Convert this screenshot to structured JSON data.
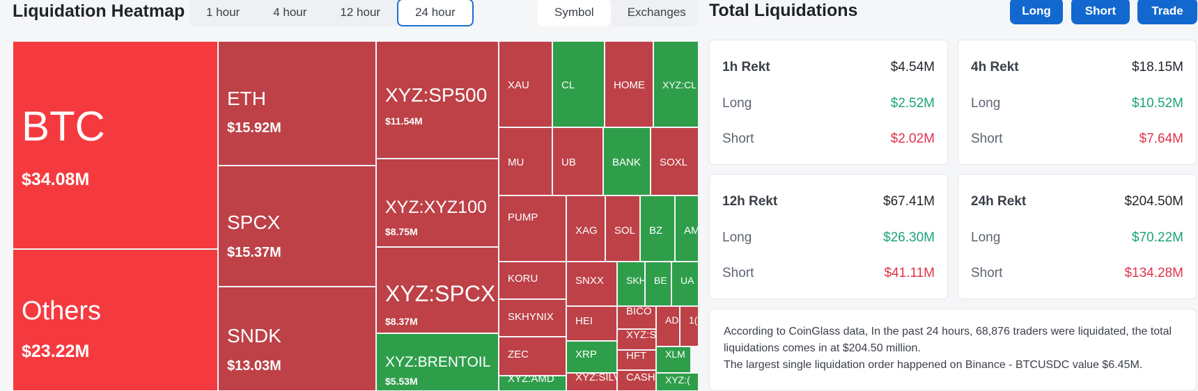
{
  "header": {
    "title": "Liquidation Heatmap",
    "time_tabs": [
      "1 hour",
      "4 hour",
      "12 hour",
      "24 hour"
    ],
    "active_time_tab": "24 hour",
    "group_tabs": [
      "Symbol",
      "Exchanges"
    ]
  },
  "heatmap": {
    "colors": {
      "red_bright": "#f53a3f",
      "red": "#bd4147",
      "green": "#2e9e4a"
    },
    "tiles": [
      {
        "symbol": "BTC",
        "value": "$34.08M"
      },
      {
        "symbol": "Others",
        "value": "$23.22M"
      },
      {
        "symbol": "ETH",
        "value": "$15.92M"
      },
      {
        "symbol": "SPCX",
        "value": "$15.37M"
      },
      {
        "symbol": "SNDK",
        "value": "$13.03M"
      },
      {
        "symbol": "XYZ:SP500",
        "value": "$11.54M"
      },
      {
        "symbol": "XYZ:XYZ100",
        "value": "$8.75M"
      },
      {
        "symbol": "XYZ:SPCX",
        "value": "$8.37M"
      },
      {
        "symbol": "XYZ:BRENTOIL",
        "value": "$5.53M"
      },
      {
        "symbol": "XAU"
      },
      {
        "symbol": "CL"
      },
      {
        "symbol": "HOME"
      },
      {
        "symbol": "XYZ:CL"
      },
      {
        "symbol": "MU"
      },
      {
        "symbol": "UB"
      },
      {
        "symbol": "BANK"
      },
      {
        "symbol": "SOXL"
      },
      {
        "symbol": "PUMP"
      },
      {
        "symbol": "XAG"
      },
      {
        "symbol": "SOL"
      },
      {
        "symbol": "BZ"
      },
      {
        "symbol": "AM"
      },
      {
        "symbol": "KORU"
      },
      {
        "symbol": "SKHYNIX"
      },
      {
        "symbol": "ZEC"
      },
      {
        "symbol": "XYZ:AMD"
      },
      {
        "symbol": "SNXX"
      },
      {
        "symbol": "SKH"
      },
      {
        "symbol": "BE"
      },
      {
        "symbol": "UA"
      },
      {
        "symbol": "HEI"
      },
      {
        "symbol": "XRP"
      },
      {
        "symbol": "XYZ:SILV"
      },
      {
        "symbol": "BICO"
      },
      {
        "symbol": "XYZ:SN"
      },
      {
        "symbol": "HFT"
      },
      {
        "symbol": "CASHC"
      },
      {
        "symbol": "AD"
      },
      {
        "symbol": "1("
      },
      {
        "symbol": "XLM"
      },
      {
        "symbol": "XYZ:("
      }
    ]
  },
  "total": {
    "title": "Total Liquidations",
    "buttons": [
      "Long",
      "Short",
      "Trade"
    ],
    "cards": [
      {
        "period": "1h Rekt",
        "total": "$4.54M",
        "long_label": "Long",
        "long": "$2.52M",
        "short_label": "Short",
        "short": "$2.02M"
      },
      {
        "period": "4h Rekt",
        "total": "$18.15M",
        "long_label": "Long",
        "long": "$10.52M",
        "short_label": "Short",
        "short": "$7.64M"
      },
      {
        "period": "12h Rekt",
        "total": "$67.41M",
        "long_label": "Long",
        "long": "$26.30M",
        "short_label": "Short",
        "short": "$41.11M"
      },
      {
        "period": "24h Rekt",
        "total": "$204.50M",
        "long_label": "Long",
        "long": "$70.22M",
        "short_label": "Short",
        "short": "$134.28M"
      }
    ],
    "summary_line1": "According to CoinGlass data, In the past 24 hours, 68,876 traders were liquidated, the total liquidations comes in at $204.50 million.",
    "summary_line2": "The largest single liquidation order happened on Binance - BTCUSDC value $6.45M."
  }
}
